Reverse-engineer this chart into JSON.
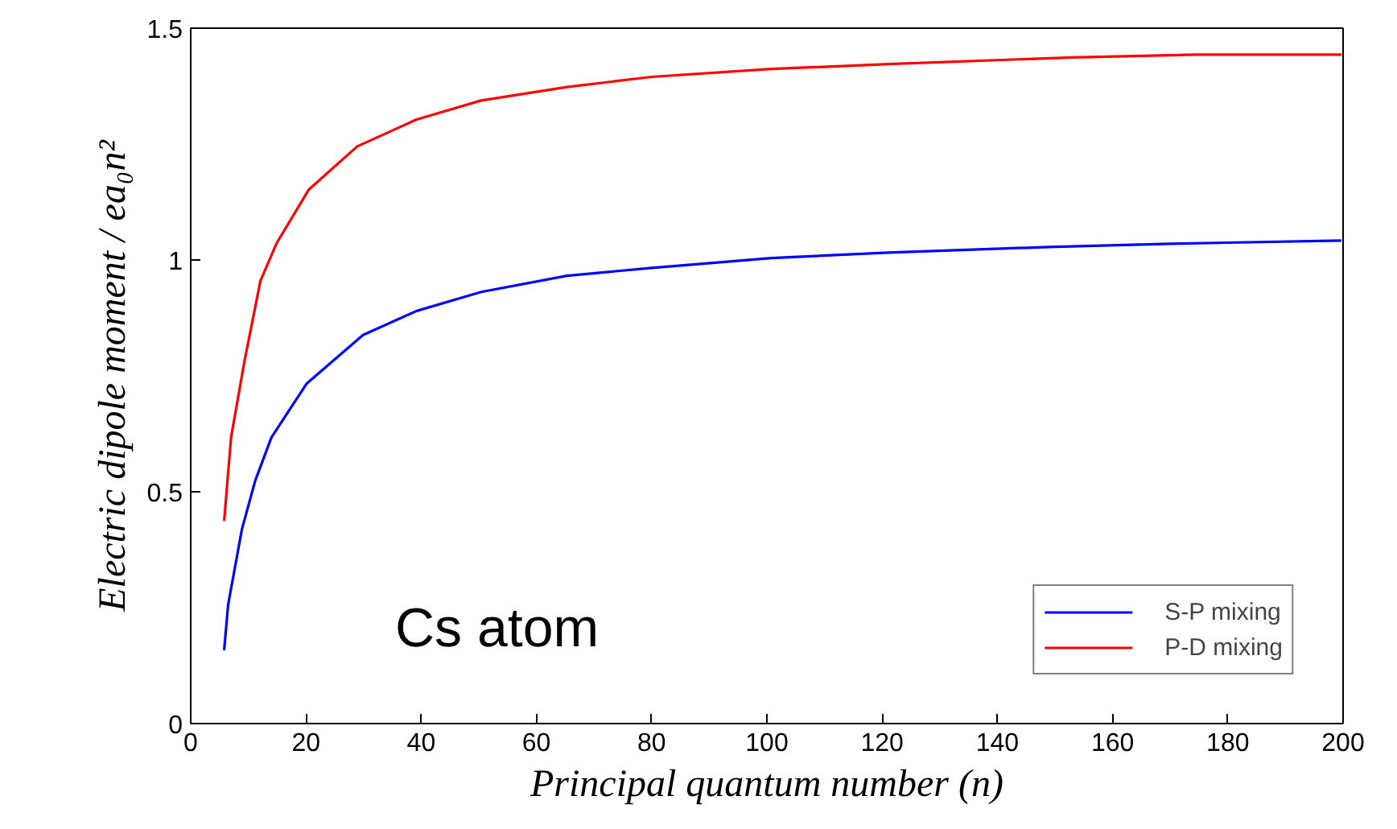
{
  "chart_data": {
    "type": "line",
    "xlabel": "Principal quantum number (n)",
    "ylabel": "Electric dipole moment / ea₀n²",
    "annotations": [
      "Cs atom"
    ],
    "xlim": [
      0,
      200
    ],
    "ylim": [
      0,
      1.5
    ],
    "xticks": [
      0,
      20,
      40,
      60,
      80,
      100,
      120,
      140,
      160,
      180,
      200
    ],
    "yticks": [
      0,
      0.5,
      1,
      1.5
    ],
    "grid": false,
    "legend": "bottom right",
    "line_style": "solid",
    "series": [
      {
        "name": "S-P mixing",
        "color": "#0000ff",
        "x": [
          5.8,
          6.5,
          8.9,
          11.2,
          14,
          20.1,
          29.9,
          39.2,
          50.4,
          65.3,
          80,
          100.8,
          121,
          149,
          170,
          199.7
        ],
        "values": [
          0.158,
          0.257,
          0.42,
          0.524,
          0.617,
          0.733,
          0.838,
          0.89,
          0.931,
          0.966,
          0.983,
          1.004,
          1.016,
          1.028,
          1.035,
          1.042
        ]
      },
      {
        "name": "P-D mixing",
        "color": "#ff0000",
        "x": [
          5.8,
          7,
          9.3,
          12.1,
          14.9,
          20.5,
          28.9,
          39.2,
          50.4,
          65.3,
          80,
          100.8,
          122,
          153,
          174.5,
          199.7
        ],
        "values": [
          0.437,
          0.617,
          0.78,
          0.955,
          1.036,
          1.152,
          1.245,
          1.303,
          1.344,
          1.373,
          1.395,
          1.412,
          1.423,
          1.437,
          1.443,
          1.443
        ]
      }
    ]
  }
}
